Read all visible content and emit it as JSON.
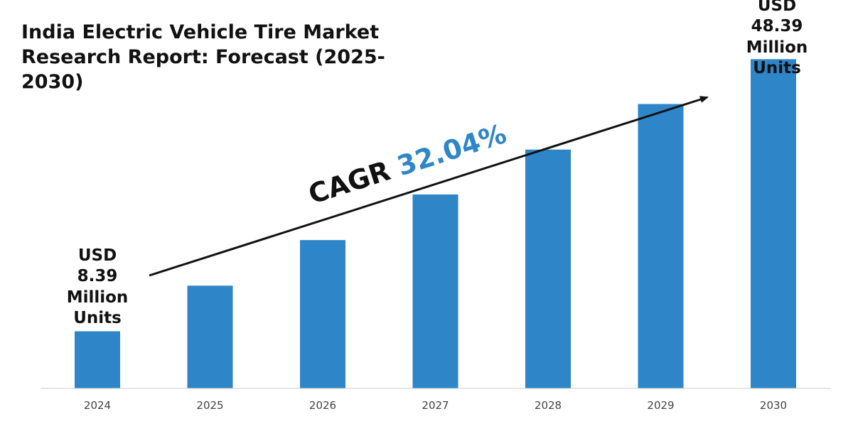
{
  "chart_data": {
    "type": "bar",
    "title": "India Electric Vehicle Tire Market Research Report: Forecast (2025-2030)",
    "categories": [
      "2024",
      "2025",
      "2026",
      "2027",
      "2028",
      "2029",
      "2030"
    ],
    "values": [
      8.39,
      15.1,
      21.8,
      28.5,
      35.1,
      41.8,
      48.39
    ],
    "ylim": [
      0,
      55
    ],
    "xlabel": "",
    "ylabel": "",
    "grid": false,
    "legend": "none",
    "bar_color": "#2e86c8",
    "annotations": {
      "start_label": "USD 8.39 Million Units",
      "end_label": "USD 48.39 Million Units",
      "cagr_prefix": "CAGR",
      "cagr_value": "32.04%"
    }
  }
}
